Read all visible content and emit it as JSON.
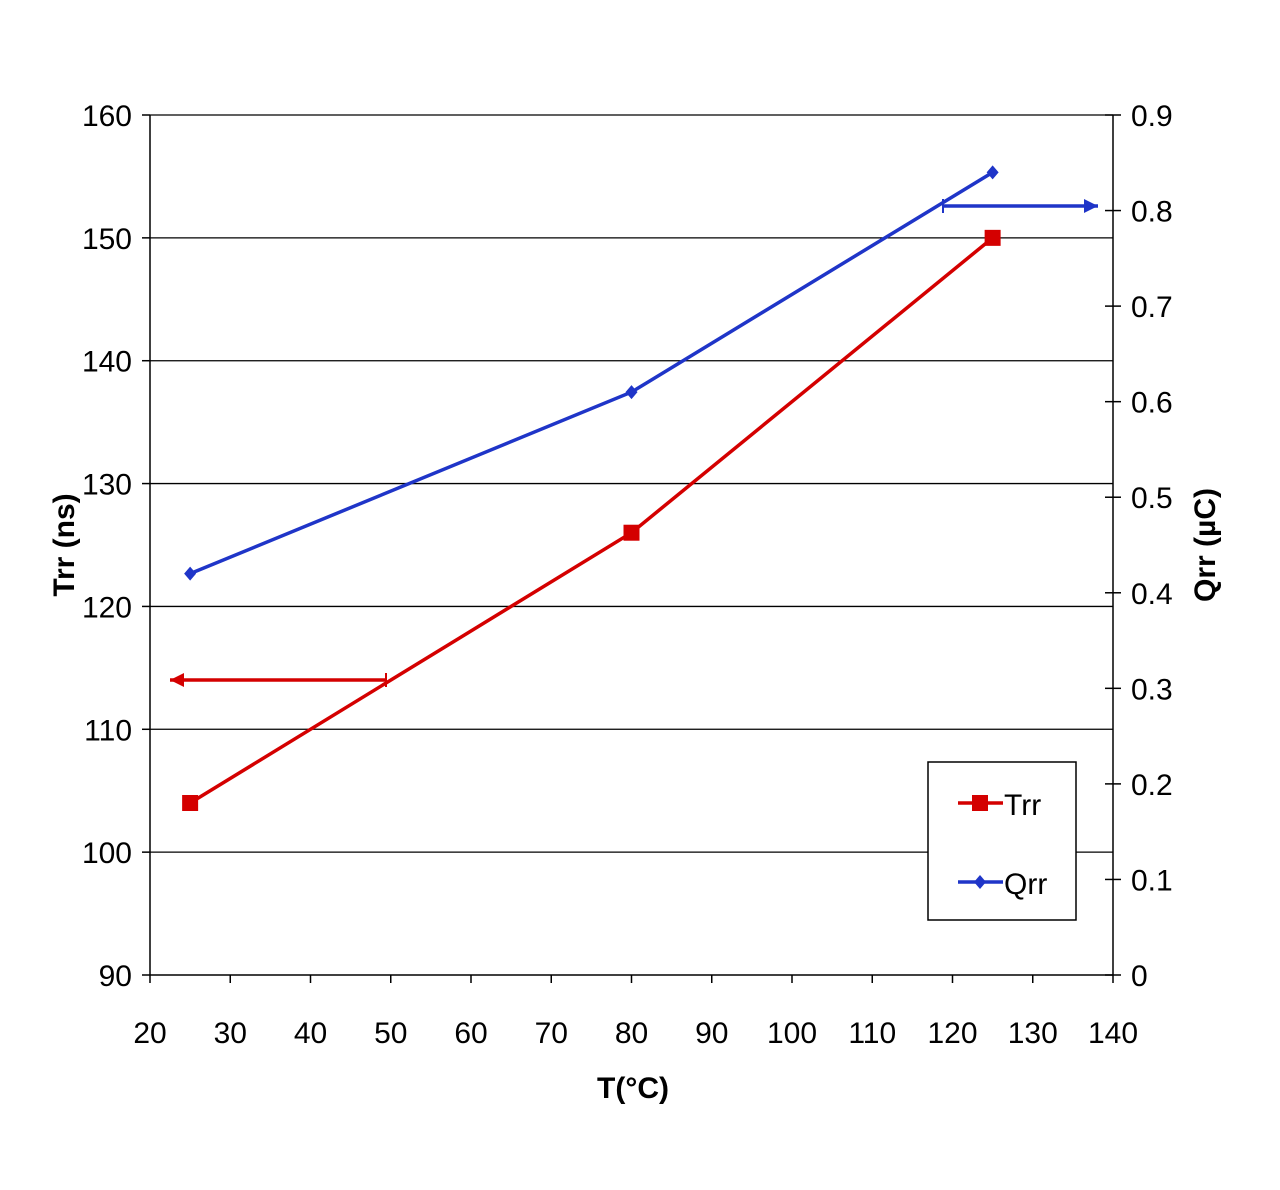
{
  "chart_data": {
    "type": "line",
    "xlabel": "T(°C)",
    "ylabel_left": "Trr (ns)",
    "ylabel_right": "Qrr (µC)",
    "xlim": [
      20,
      140
    ],
    "ylim_left": [
      90,
      160
    ],
    "ylim_right": [
      0,
      0.9
    ],
    "x_ticks": [
      20,
      30,
      40,
      50,
      60,
      70,
      80,
      90,
      100,
      110,
      120,
      130,
      140
    ],
    "y_left_ticks": [
      90,
      100,
      110,
      120,
      130,
      140,
      150,
      160
    ],
    "y_right_ticks": [
      0,
      0.1,
      0.2,
      0.3,
      0.4,
      0.5,
      0.6,
      0.7,
      0.8,
      0.9
    ],
    "grid": "horizontal",
    "legend_position": "bottom-right",
    "series": [
      {
        "name": "Trr",
        "axis": "left",
        "color": "#d40000",
        "marker": "square",
        "x": [
          25,
          80,
          125
        ],
        "y": [
          104,
          126,
          150
        ]
      },
      {
        "name": "Qrr",
        "axis": "right",
        "color": "#1f35c8",
        "marker": "diamond",
        "x": [
          25,
          80,
          125
        ],
        "y": [
          0.42,
          0.61,
          0.84
        ]
      }
    ],
    "annotations": [
      {
        "type": "axis-arrow",
        "series": "Trr",
        "points_to": "left",
        "color": "#d40000"
      },
      {
        "type": "axis-arrow",
        "series": "Qrr",
        "points_to": "right",
        "color": "#1f35c8"
      }
    ]
  }
}
